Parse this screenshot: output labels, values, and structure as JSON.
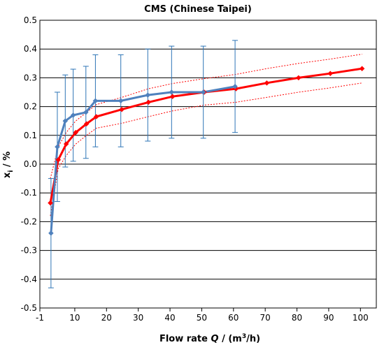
{
  "chart_data": {
    "type": "line",
    "title": "CMS (Chinese Taipei)",
    "xlabel_parts": {
      "prefix": "Flow rate ",
      "var": "Q",
      "mid": " / (m",
      "sup": "3",
      "suffix": "/h)"
    },
    "ylabel_parts": {
      "main": "x",
      "sub": "i",
      "suffix": " / %"
    },
    "xlim": [
      -1,
      105
    ],
    "ylim": [
      -0.5,
      0.5
    ],
    "x_ticks": [
      -1,
      10,
      20,
      30,
      40,
      50,
      60,
      70,
      80,
      90,
      100
    ],
    "x_tick_labels": [
      "-1",
      "10",
      "20",
      "30",
      "40",
      "50",
      "60",
      "70",
      "80",
      "90",
      "100"
    ],
    "y_ticks": [
      -0.5,
      -0.4,
      -0.3,
      -0.2,
      -0.1,
      0.0,
      0.1,
      0.2,
      0.3,
      0.4,
      0.5
    ],
    "y_tick_labels": [
      "-0.5",
      "-0.4",
      "-0.3",
      "-0.2",
      "-0.1",
      "0.0",
      "0.1",
      "0.2",
      "0.3",
      "0.4",
      "0.5"
    ],
    "grid": "horizontal",
    "series": [
      {
        "color": "#4f81bd",
        "marker": "diamond",
        "x": [
          2.5,
          4.5,
          7,
          9.5,
          13.5,
          16.5,
          24.5,
          33,
          40.5,
          50.5,
          60.5
        ],
        "y": [
          -0.24,
          0.06,
          0.15,
          0.17,
          0.18,
          0.22,
          0.22,
          0.24,
          0.25,
          0.25,
          0.27
        ],
        "error_low": [
          -0.43,
          -0.13,
          -0.01,
          0.01,
          0.02,
          0.06,
          0.06,
          0.08,
          0.09,
          0.09,
          0.11
        ],
        "error_high": [
          -0.05,
          0.25,
          0.31,
          0.33,
          0.34,
          0.38,
          0.38,
          0.4,
          0.41,
          0.41,
          0.43
        ]
      },
      {
        "color": "#ff0000",
        "marker": "diamond",
        "x": [
          2.3,
          4.8,
          7.3,
          10.3,
          13.7,
          16.8,
          24.8,
          33.2,
          40.8,
          50.8,
          60.8,
          70.5,
          80.5,
          90.5,
          100.5
        ],
        "y": [
          -0.135,
          0.015,
          0.07,
          0.11,
          0.14,
          0.165,
          0.19,
          0.215,
          0.235,
          0.25,
          0.262,
          0.282,
          0.3,
          0.315,
          0.332
        ],
        "band_low": [
          -0.18,
          -0.015,
          0.03,
          0.07,
          0.1,
          0.125,
          0.142,
          0.165,
          0.185,
          0.205,
          0.215,
          0.232,
          0.25,
          0.265,
          0.282
        ],
        "band_high": [
          -0.05,
          0.06,
          0.11,
          0.15,
          0.18,
          0.207,
          0.232,
          0.262,
          0.28,
          0.297,
          0.312,
          0.332,
          0.35,
          0.365,
          0.382
        ]
      }
    ]
  }
}
